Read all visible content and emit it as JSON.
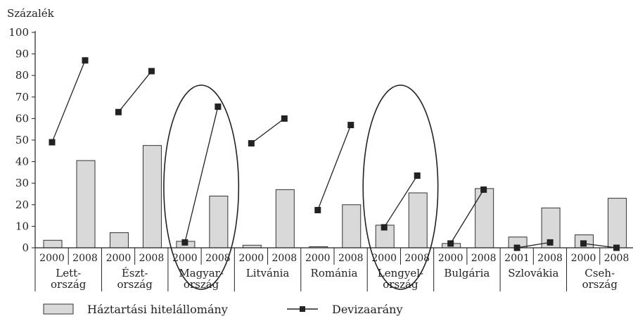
{
  "chart_data": {
    "type": "bar",
    "ylabel": "Százalék",
    "ylim": [
      0,
      100
    ],
    "yticks": [
      0,
      10,
      20,
      30,
      40,
      50,
      60,
      70,
      80,
      90,
      100
    ],
    "legend_position": "bottom",
    "colors": {
      "bar_fill": "#d9d9d9",
      "bar_stroke": "#333333",
      "line": "#222222",
      "marker": "#222222"
    },
    "groups": [
      {
        "country": [
          "Lett-",
          "ország"
        ],
        "years": [
          "2000",
          "2008"
        ]
      },
      {
        "country": [
          "Észt-",
          "ország"
        ],
        "years": [
          "2000",
          "2008"
        ]
      },
      {
        "country": [
          "Magyar-",
          "ország"
        ],
        "years": [
          "2000",
          "2008"
        ],
        "highlighted": true
      },
      {
        "country": [
          "Litvánia"
        ],
        "years": [
          "2000",
          "2008"
        ]
      },
      {
        "country": [
          "Románia"
        ],
        "years": [
          "2000",
          "2008"
        ]
      },
      {
        "country": [
          "Lengyel-",
          "ország"
        ],
        "years": [
          "2000",
          "2008"
        ],
        "highlighted": true
      },
      {
        "country": [
          "Bulgária"
        ],
        "years": [
          "2000",
          "2008"
        ]
      },
      {
        "country": [
          "Szlovákia"
        ],
        "years": [
          "2001",
          "2008"
        ]
      },
      {
        "country": [
          "Cseh-",
          "ország"
        ],
        "years": [
          "2000",
          "2008"
        ]
      }
    ],
    "series": [
      {
        "name": "Háztartási hitelállomány",
        "kind": "bar",
        "values": [
          [
            3.5,
            40.5
          ],
          [
            7,
            47.5
          ],
          [
            3,
            24
          ],
          [
            1.2,
            27
          ],
          [
            0.5,
            20
          ],
          [
            10.5,
            25.5
          ],
          [
            2,
            27.5
          ],
          [
            5,
            18.5
          ],
          [
            6,
            23
          ]
        ]
      },
      {
        "name": "Devizaarány",
        "kind": "line-pairs",
        "values": [
          [
            49,
            87
          ],
          [
            63,
            82
          ],
          [
            2.5,
            65.5
          ],
          [
            48.5,
            60
          ],
          [
            17.5,
            57
          ],
          [
            9.5,
            33.5
          ],
          [
            2,
            27
          ],
          [
            0,
            2.5
          ],
          [
            2,
            0
          ]
        ]
      }
    ]
  }
}
